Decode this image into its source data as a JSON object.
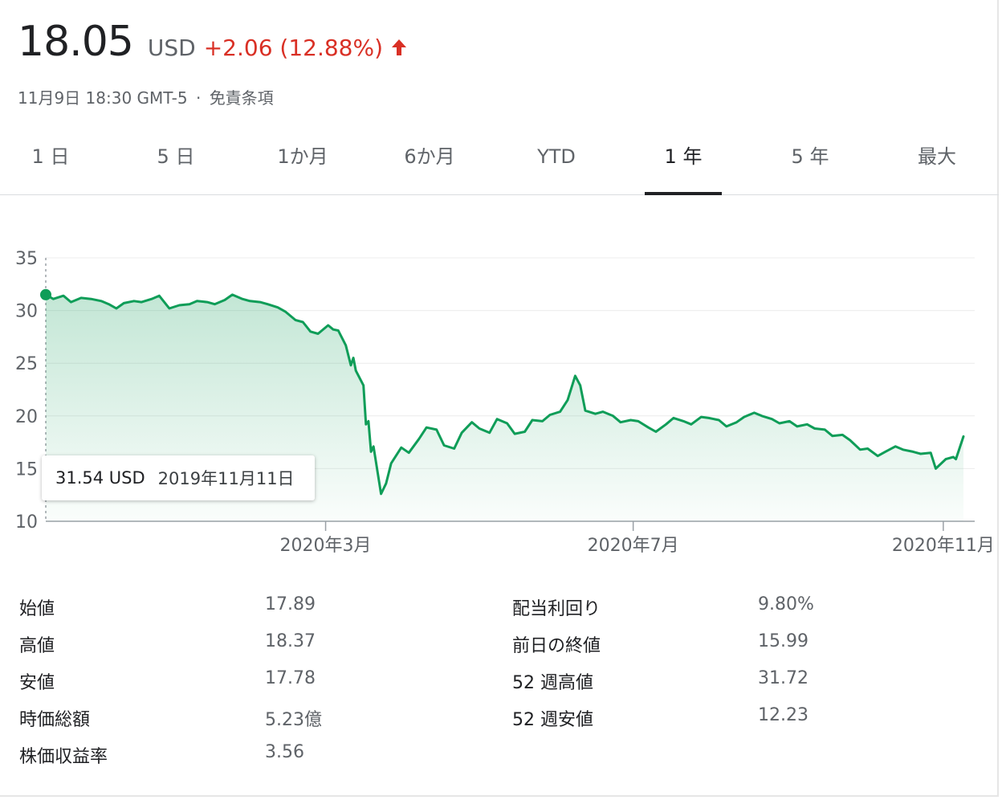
{
  "header": {
    "price": "18.05",
    "currency": "USD",
    "change": "+2.06 (12.88%)",
    "timestamp": "11月9日 18:30 GMT-5",
    "separator": "·",
    "disclaimer": "免責条項"
  },
  "tabs": [
    {
      "label": "1 日",
      "active": false
    },
    {
      "label": "5 日",
      "active": false
    },
    {
      "label": "1か月",
      "active": false
    },
    {
      "label": "6か月",
      "active": false
    },
    {
      "label": "YTD",
      "active": false
    },
    {
      "label": "1 年",
      "active": true
    },
    {
      "label": "5 年",
      "active": false
    },
    {
      "label": "最大",
      "active": false
    }
  ],
  "tooltip": {
    "value": "31.54 USD",
    "date": "2019年11月11日"
  },
  "colors": {
    "line": "#0f9d58",
    "change": "#d93025",
    "active_tab": "#202124"
  },
  "chart_data": {
    "type": "area",
    "ylim": [
      10,
      35
    ],
    "y_ticks": [
      "35",
      "30",
      "25",
      "20",
      "15",
      "10"
    ],
    "x_ticks": [
      "2020年3月",
      "2020年7月",
      "2020年11月"
    ],
    "x_start": "2019-11-11",
    "x_end": "2020-11-09",
    "x_tick_dates": [
      "2020-03-01",
      "2020-07-01",
      "2020-11-01"
    ],
    "points": [
      [
        "2019-11-11",
        31.5
      ],
      [
        "2019-11-14",
        31.1
      ],
      [
        "2019-11-18",
        31.4
      ],
      [
        "2019-11-21",
        30.8
      ],
      [
        "2019-11-25",
        31.2
      ],
      [
        "2019-11-29",
        31.1
      ],
      [
        "2019-12-03",
        30.9
      ],
      [
        "2019-12-06",
        30.6
      ],
      [
        "2019-12-09",
        30.2
      ],
      [
        "2019-12-12",
        30.7
      ],
      [
        "2019-12-16",
        30.9
      ],
      [
        "2019-12-19",
        30.8
      ],
      [
        "2019-12-23",
        31.1
      ],
      [
        "2019-12-26",
        31.4
      ],
      [
        "2019-12-30",
        30.2
      ],
      [
        "2020-01-03",
        30.5
      ],
      [
        "2020-01-07",
        30.6
      ],
      [
        "2020-01-10",
        30.9
      ],
      [
        "2020-01-14",
        30.8
      ],
      [
        "2020-01-17",
        30.6
      ],
      [
        "2020-01-21",
        31.0
      ],
      [
        "2020-01-24",
        31.5
      ],
      [
        "2020-01-28",
        31.1
      ],
      [
        "2020-01-31",
        30.9
      ],
      [
        "2020-02-04",
        30.8
      ],
      [
        "2020-02-07",
        30.6
      ],
      [
        "2020-02-11",
        30.3
      ],
      [
        "2020-02-14",
        29.9
      ],
      [
        "2020-02-18",
        29.1
      ],
      [
        "2020-02-21",
        28.9
      ],
      [
        "2020-02-24",
        28.0
      ],
      [
        "2020-02-27",
        27.8
      ],
      [
        "2020-03-02",
        28.6
      ],
      [
        "2020-03-04",
        28.2
      ],
      [
        "2020-03-06",
        28.1
      ],
      [
        "2020-03-09",
        26.7
      ],
      [
        "2020-03-11",
        24.8
      ],
      [
        "2020-03-12",
        25.5
      ],
      [
        "2020-03-13",
        24.3
      ],
      [
        "2020-03-16",
        22.9
      ],
      [
        "2020-03-17",
        19.2
      ],
      [
        "2020-03-18",
        19.5
      ],
      [
        "2020-03-19",
        16.6
      ],
      [
        "2020-03-20",
        17.1
      ],
      [
        "2020-03-23",
        12.6
      ],
      [
        "2020-03-25",
        13.6
      ],
      [
        "2020-03-27",
        15.5
      ],
      [
        "2020-03-31",
        17.0
      ],
      [
        "2020-04-03",
        16.5
      ],
      [
        "2020-04-07",
        17.8
      ],
      [
        "2020-04-10",
        18.9
      ],
      [
        "2020-04-14",
        18.7
      ],
      [
        "2020-04-17",
        17.2
      ],
      [
        "2020-04-21",
        16.9
      ],
      [
        "2020-04-24",
        18.4
      ],
      [
        "2020-04-28",
        19.4
      ],
      [
        "2020-05-01",
        18.8
      ],
      [
        "2020-05-05",
        18.4
      ],
      [
        "2020-05-08",
        19.7
      ],
      [
        "2020-05-12",
        19.3
      ],
      [
        "2020-05-15",
        18.3
      ],
      [
        "2020-05-19",
        18.5
      ],
      [
        "2020-05-22",
        19.6
      ],
      [
        "2020-05-26",
        19.5
      ],
      [
        "2020-05-29",
        20.1
      ],
      [
        "2020-06-02",
        20.4
      ],
      [
        "2020-06-05",
        21.5
      ],
      [
        "2020-06-08",
        23.8
      ],
      [
        "2020-06-10",
        22.9
      ],
      [
        "2020-06-12",
        20.5
      ],
      [
        "2020-06-16",
        20.2
      ],
      [
        "2020-06-19",
        20.4
      ],
      [
        "2020-06-23",
        20.0
      ],
      [
        "2020-06-26",
        19.4
      ],
      [
        "2020-06-30",
        19.6
      ],
      [
        "2020-07-03",
        19.5
      ],
      [
        "2020-07-07",
        18.9
      ],
      [
        "2020-07-10",
        18.5
      ],
      [
        "2020-07-14",
        19.2
      ],
      [
        "2020-07-17",
        19.8
      ],
      [
        "2020-07-21",
        19.5
      ],
      [
        "2020-07-24",
        19.2
      ],
      [
        "2020-07-28",
        19.9
      ],
      [
        "2020-07-31",
        19.8
      ],
      [
        "2020-08-04",
        19.6
      ],
      [
        "2020-08-07",
        19.0
      ],
      [
        "2020-08-11",
        19.4
      ],
      [
        "2020-08-14",
        19.9
      ],
      [
        "2020-08-18",
        20.3
      ],
      [
        "2020-08-21",
        20.0
      ],
      [
        "2020-08-25",
        19.7
      ],
      [
        "2020-08-28",
        19.3
      ],
      [
        "2020-09-01",
        19.5
      ],
      [
        "2020-09-04",
        19.0
      ],
      [
        "2020-09-08",
        19.2
      ],
      [
        "2020-09-11",
        18.8
      ],
      [
        "2020-09-15",
        18.7
      ],
      [
        "2020-09-18",
        18.1
      ],
      [
        "2020-09-22",
        18.2
      ],
      [
        "2020-09-25",
        17.7
      ],
      [
        "2020-09-29",
        16.8
      ],
      [
        "2020-10-02",
        16.9
      ],
      [
        "2020-10-06",
        16.2
      ],
      [
        "2020-10-09",
        16.6
      ],
      [
        "2020-10-13",
        17.1
      ],
      [
        "2020-10-16",
        16.8
      ],
      [
        "2020-10-20",
        16.6
      ],
      [
        "2020-10-23",
        16.4
      ],
      [
        "2020-10-27",
        16.5
      ],
      [
        "2020-10-29",
        15.0
      ],
      [
        "2020-11-02",
        15.9
      ],
      [
        "2020-11-05",
        16.1
      ],
      [
        "2020-11-06",
        15.9
      ],
      [
        "2020-11-09",
        18.05
      ]
    ]
  },
  "stats": {
    "left": [
      {
        "label": "始値",
        "value": "17.89"
      },
      {
        "label": "高値",
        "value": "18.37"
      },
      {
        "label": "安値",
        "value": "17.78"
      },
      {
        "label": "時価総額",
        "value": "5.23億"
      },
      {
        "label": "株価収益率",
        "value": "3.56"
      }
    ],
    "right": [
      {
        "label": "配当利回り",
        "value": "9.80%"
      },
      {
        "label": "前日の終値",
        "value": "15.99"
      },
      {
        "label": "52 週高値",
        "value": "31.72"
      },
      {
        "label": "52 週安値",
        "value": "12.23"
      }
    ]
  }
}
